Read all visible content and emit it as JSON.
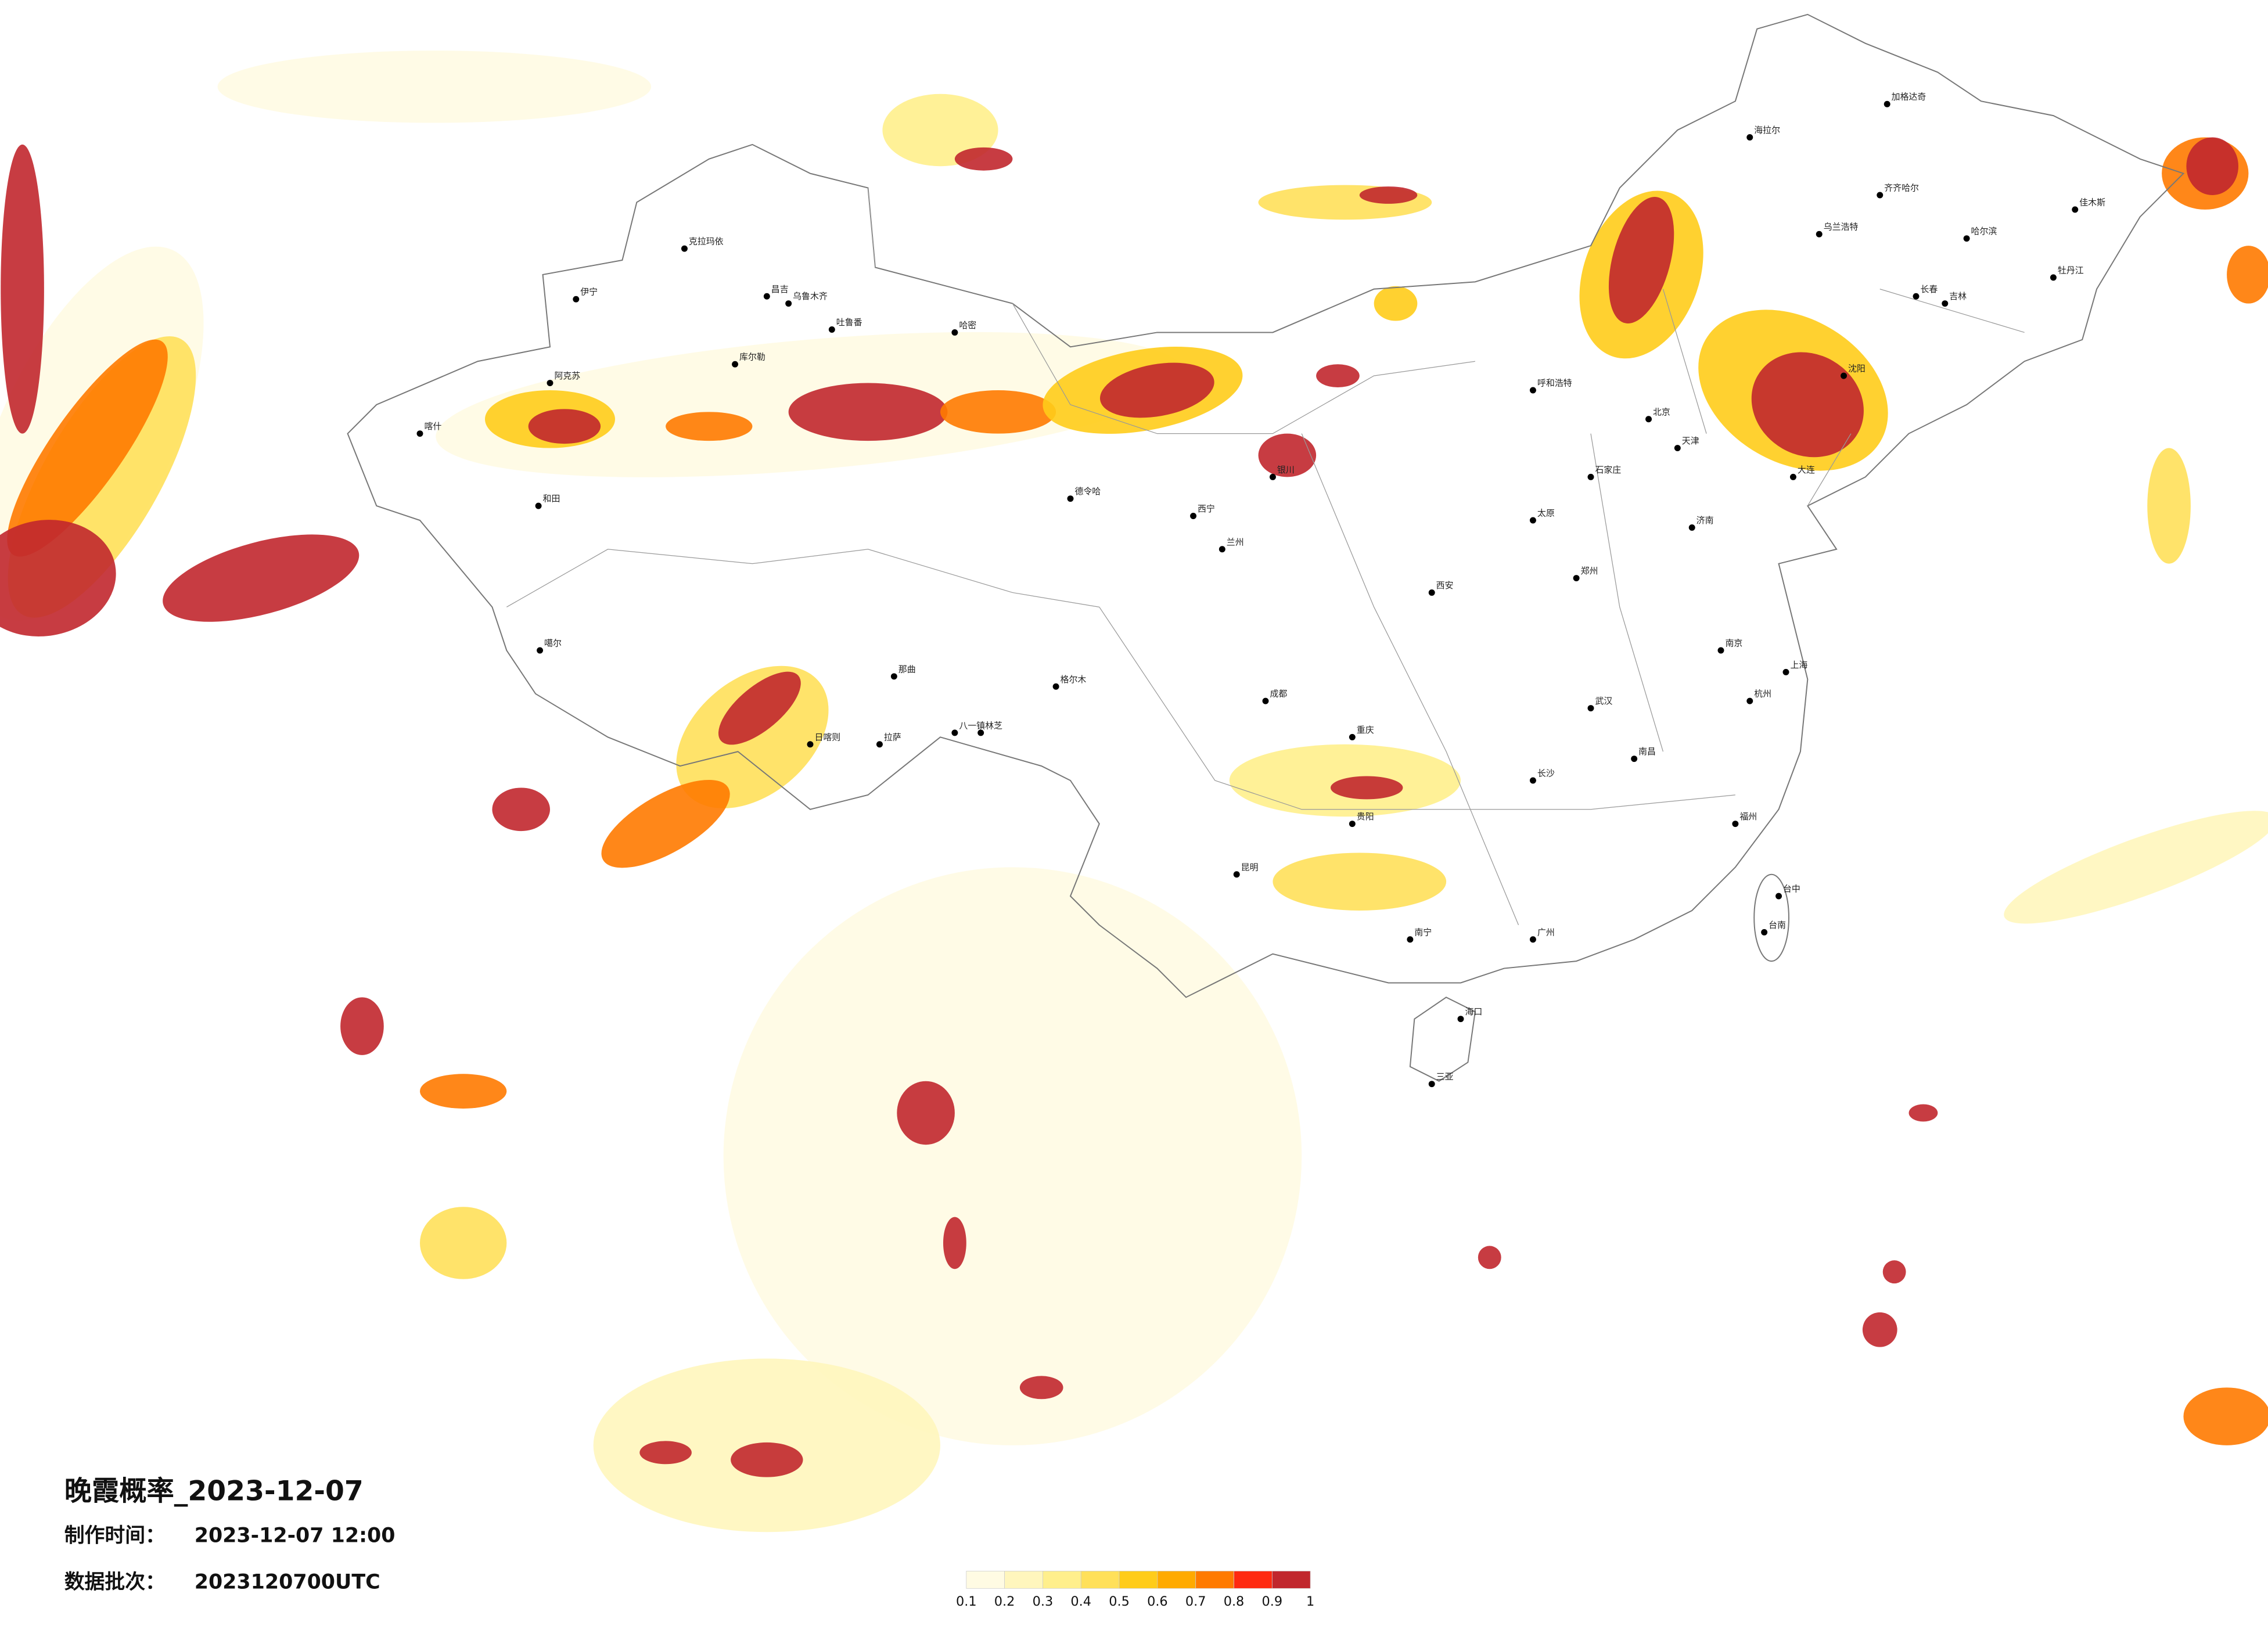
{
  "header": {
    "title": "晚霞概率_2023-12-07",
    "made_label": "制作时间：",
    "made_time": "2023-12-07 12:00",
    "batch_label": "数据批次：",
    "batch": "2023120700UTC"
  },
  "legend": {
    "ticks": [
      0.1,
      0.2,
      0.3,
      0.4,
      0.5,
      0.6,
      0.7,
      0.8,
      0.9,
      1
    ],
    "colors": [
      "#fffbe3",
      "#fff6bd",
      "#ffef8c",
      "#ffe05a",
      "#ffcc1a",
      "#ffaa00",
      "#ff7a00",
      "#ff2a10",
      "#c1272d"
    ]
  },
  "cities": [
    "克拉玛依",
    "伊宁",
    "昌吉",
    "乌鲁木齐",
    "吐鲁番",
    "哈密",
    "库尔勒",
    "阿克苏",
    "喀什",
    "和田",
    "德令哈",
    "格尔木",
    "拉萨",
    "日喀则",
    "八一镇",
    "林芝",
    "那曲",
    "噶尔",
    "西宁",
    "兰州",
    "银川",
    "呼和浩特",
    "北京",
    "天津",
    "石家庄",
    "太原",
    "济南",
    "郑州",
    "西安",
    "成都",
    "重庆",
    "武汉",
    "南京",
    "上海",
    "杭州",
    "长沙",
    "南昌",
    "福州",
    "贵阳",
    "昆明",
    "南宁",
    "广州",
    "海口",
    "三亚",
    "台中",
    "台南",
    "哈尔滨",
    "长春",
    "沈阳",
    "大连",
    "乌兰浩特",
    "齐齐哈尔",
    "海拉尔",
    "加格达奇",
    "佳木斯",
    "牡丹江",
    "吉林"
  ]
}
